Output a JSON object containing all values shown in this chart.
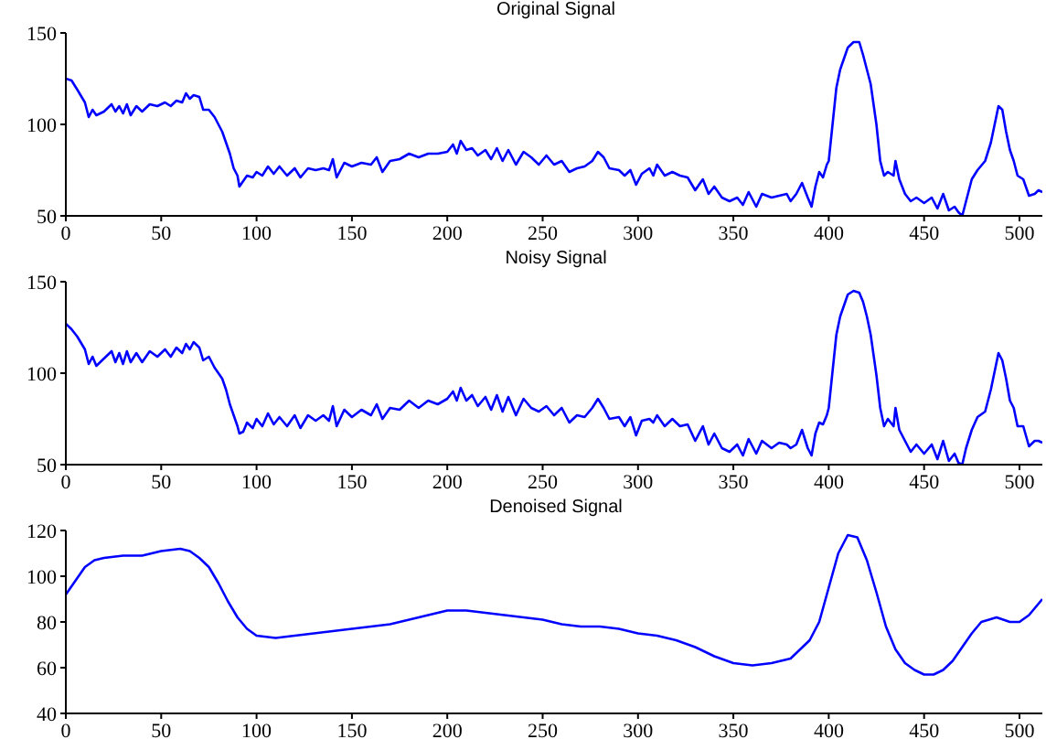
{
  "chart_data": [
    {
      "type": "line",
      "title": "Original Signal",
      "xlim": [
        0,
        512
      ],
      "xticks": [
        0,
        50,
        100,
        150,
        200,
        250,
        300,
        350,
        400,
        450,
        500
      ],
      "ylim": [
        50,
        150
      ],
      "yticks": [
        50,
        100,
        150
      ],
      "grid": false,
      "legend": false,
      "marker": "none",
      "line_style": "solid",
      "series": [
        {
          "color": "#0000ff",
          "x": [
            0,
            3,
            6,
            10,
            12,
            14,
            16,
            20,
            24,
            26,
            28,
            30,
            32,
            34,
            37,
            40,
            44,
            48,
            52,
            55,
            58,
            61,
            63,
            65,
            67,
            70,
            72,
            75,
            78,
            82,
            84,
            86,
            88,
            90,
            91,
            93,
            95,
            98,
            100,
            103,
            106,
            109,
            112,
            116,
            120,
            123,
            127,
            131,
            135,
            138,
            140,
            142,
            146,
            150,
            155,
            160,
            163,
            166,
            170,
            175,
            180,
            185,
            190,
            195,
            200,
            203,
            205,
            207,
            210,
            213,
            216,
            220,
            223,
            226,
            229,
            232,
            236,
            240,
            244,
            248,
            252,
            256,
            260,
            264,
            268,
            272,
            276,
            279,
            282,
            285,
            290,
            293,
            296,
            299,
            302,
            306,
            308,
            310,
            314,
            318,
            322,
            326,
            330,
            334,
            337,
            340,
            344,
            348,
            352,
            355,
            358,
            362,
            365,
            370,
            374,
            378,
            380,
            383,
            386,
            389,
            391,
            393,
            395,
            397,
            399,
            400,
            402,
            404,
            406,
            408,
            410,
            413,
            416,
            418,
            420,
            422,
            425,
            427,
            429,
            431,
            434,
            435,
            437,
            440,
            443,
            446,
            450,
            454,
            457,
            460,
            463,
            466,
            468,
            470,
            472,
            475,
            478,
            482,
            485,
            487,
            489,
            491,
            493,
            495,
            497,
            499,
            502,
            505,
            508,
            510,
            512
          ],
          "values": [
            125,
            124,
            119,
            112,
            104,
            108,
            105,
            107,
            111,
            107,
            110,
            106,
            111,
            105,
            110,
            107,
            111,
            110,
            112,
            110,
            113,
            112,
            117,
            114,
            116,
            115,
            108,
            108,
            104,
            96,
            90,
            84,
            76,
            72,
            66,
            69,
            72,
            71,
            74,
            72,
            77,
            73,
            77,
            72,
            76,
            71,
            76,
            75,
            76,
            75,
            81,
            71,
            79,
            77,
            79,
            78,
            82,
            74,
            80,
            81,
            84,
            82,
            84,
            84,
            85,
            89,
            84,
            91,
            86,
            87,
            83,
            86,
            81,
            87,
            80,
            86,
            78,
            85,
            82,
            78,
            83,
            78,
            80,
            74,
            76,
            77,
            80,
            85,
            82,
            76,
            75,
            72,
            75,
            67,
            73,
            76,
            72,
            78,
            72,
            74,
            72,
            71,
            64,
            70,
            62,
            66,
            60,
            58,
            60,
            56,
            63,
            55,
            62,
            60,
            61,
            62,
            58,
            62,
            68,
            60,
            55,
            66,
            74,
            71,
            78,
            80,
            100,
            120,
            130,
            136,
            142,
            145,
            145,
            138,
            130,
            122,
            100,
            80,
            72,
            74,
            72,
            80,
            70,
            62,
            58,
            60,
            57,
            60,
            54,
            62,
            53,
            55,
            52,
            50,
            58,
            70,
            75,
            80,
            90,
            100,
            110,
            108,
            96,
            86,
            80,
            72,
            70,
            61,
            62,
            64,
            63
          ]
        }
      ]
    },
    {
      "type": "line",
      "title": "Noisy Signal",
      "xlim": [
        0,
        512
      ],
      "xticks": [
        0,
        50,
        100,
        150,
        200,
        250,
        300,
        350,
        400,
        450,
        500
      ],
      "ylim": [
        50,
        150
      ],
      "yticks": [
        50,
        100,
        150
      ],
      "grid": false,
      "legend": false,
      "marker": "none",
      "line_style": "solid",
      "series": [
        {
          "color": "#0000ff",
          "x": [
            0,
            3,
            6,
            10,
            12,
            14,
            16,
            20,
            24,
            26,
            28,
            30,
            32,
            34,
            37,
            40,
            44,
            48,
            52,
            55,
            58,
            61,
            63,
            65,
            67,
            70,
            72,
            75,
            78,
            82,
            84,
            86,
            88,
            90,
            91,
            93,
            95,
            98,
            100,
            103,
            106,
            109,
            112,
            116,
            120,
            123,
            127,
            131,
            135,
            138,
            140,
            142,
            146,
            150,
            155,
            160,
            163,
            166,
            170,
            175,
            180,
            185,
            190,
            195,
            200,
            203,
            205,
            207,
            210,
            213,
            216,
            220,
            223,
            226,
            229,
            232,
            236,
            240,
            244,
            248,
            252,
            256,
            260,
            264,
            268,
            272,
            276,
            279,
            282,
            285,
            290,
            293,
            296,
            299,
            302,
            306,
            308,
            310,
            314,
            318,
            322,
            326,
            330,
            334,
            337,
            340,
            344,
            348,
            352,
            355,
            358,
            362,
            365,
            370,
            374,
            378,
            380,
            383,
            386,
            389,
            391,
            393,
            395,
            397,
            399,
            400,
            402,
            404,
            406,
            408,
            410,
            413,
            416,
            418,
            420,
            422,
            425,
            427,
            429,
            431,
            434,
            435,
            437,
            440,
            443,
            446,
            450,
            454,
            457,
            460,
            463,
            466,
            468,
            470,
            472,
            475,
            478,
            482,
            485,
            487,
            489,
            491,
            493,
            495,
            497,
            499,
            502,
            505,
            508,
            510,
            512
          ],
          "values": [
            127,
            124,
            120,
            113,
            105,
            109,
            104,
            108,
            112,
            106,
            111,
            105,
            112,
            106,
            111,
            106,
            112,
            109,
            113,
            109,
            114,
            111,
            116,
            113,
            117,
            114,
            107,
            109,
            103,
            97,
            91,
            83,
            77,
            71,
            67,
            68,
            73,
            70,
            75,
            71,
            78,
            72,
            76,
            71,
            77,
            70,
            77,
            74,
            77,
            74,
            82,
            71,
            80,
            76,
            80,
            77,
            83,
            75,
            81,
            80,
            85,
            81,
            85,
            83,
            86,
            90,
            85,
            92,
            85,
            88,
            82,
            87,
            80,
            88,
            79,
            87,
            77,
            86,
            81,
            79,
            82,
            77,
            81,
            73,
            77,
            76,
            81,
            86,
            81,
            75,
            76,
            71,
            76,
            66,
            74,
            75,
            73,
            77,
            71,
            75,
            71,
            72,
            63,
            71,
            61,
            67,
            59,
            57,
            61,
            55,
            64,
            56,
            63,
            59,
            62,
            61,
            59,
            61,
            69,
            59,
            55,
            67,
            73,
            72,
            77,
            81,
            101,
            121,
            131,
            137,
            143,
            145,
            144,
            139,
            131,
            121,
            99,
            81,
            71,
            75,
            71,
            81,
            69,
            63,
            57,
            61,
            56,
            61,
            53,
            63,
            52,
            56,
            51,
            50,
            59,
            69,
            76,
            79,
            91,
            101,
            111,
            107,
            97,
            85,
            81,
            71,
            71,
            60,
            63,
            63,
            62
          ]
        }
      ]
    },
    {
      "type": "line",
      "title": "Denoised Signal",
      "xlim": [
        0,
        512
      ],
      "xticks": [
        0,
        50,
        100,
        150,
        200,
        250,
        300,
        350,
        400,
        450,
        500
      ],
      "ylim": [
        40,
        120
      ],
      "yticks": [
        40,
        60,
        80,
        100,
        120
      ],
      "grid": false,
      "legend": false,
      "marker": "none",
      "line_style": "solid",
      "series": [
        {
          "color": "#0000ff",
          "x": [
            0,
            5,
            10,
            15,
            20,
            30,
            40,
            50,
            60,
            65,
            70,
            75,
            80,
            85,
            90,
            95,
            100,
            110,
            120,
            130,
            140,
            150,
            160,
            170,
            180,
            190,
            200,
            210,
            220,
            230,
            240,
            250,
            260,
            270,
            280,
            290,
            300,
            310,
            320,
            330,
            340,
            350,
            360,
            370,
            380,
            390,
            395,
            400,
            405,
            410,
            415,
            420,
            425,
            430,
            435,
            440,
            445,
            450,
            455,
            460,
            465,
            470,
            475,
            480,
            488,
            495,
            500,
            505,
            512
          ],
          "values": [
            92,
            98,
            104,
            107,
            108,
            109,
            109,
            111,
            112,
            111,
            108,
            104,
            97,
            89,
            82,
            77,
            74,
            73,
            74,
            75,
            76,
            77,
            78,
            79,
            81,
            83,
            85,
            85,
            84,
            83,
            82,
            81,
            79,
            78,
            78,
            77,
            75,
            74,
            72,
            69,
            65,
            62,
            61,
            62,
            64,
            72,
            80,
            95,
            110,
            118,
            117,
            107,
            93,
            78,
            68,
            62,
            59,
            57,
            57,
            59,
            63,
            69,
            75,
            80,
            82,
            80,
            80,
            83,
            90
          ]
        }
      ]
    }
  ]
}
